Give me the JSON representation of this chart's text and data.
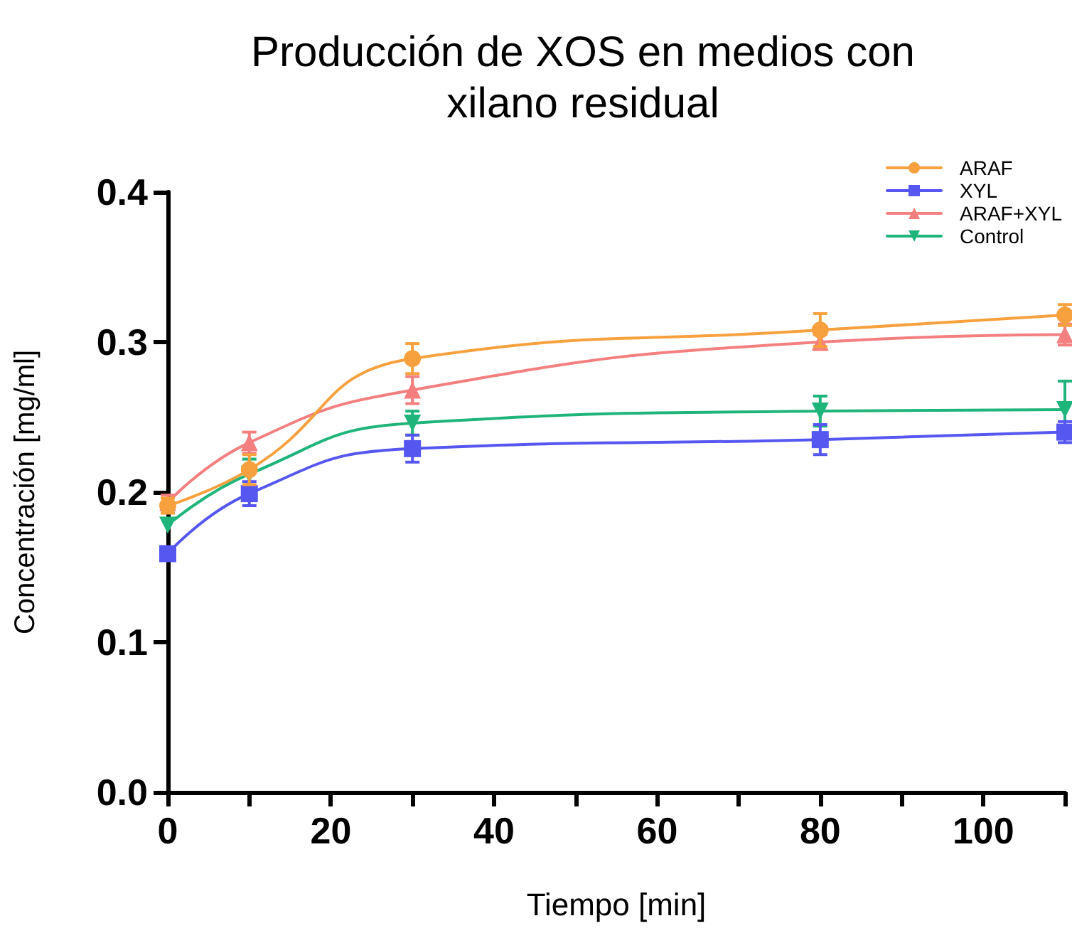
{
  "chart_data": {
    "type": "line",
    "title": "Producción de XOS en medios con\nxilano residual",
    "xlabel": "Tiempo [min]",
    "ylabel": "Concentración [mg/ml]",
    "x": [
      0,
      10,
      30,
      80,
      110
    ],
    "series": [
      {
        "name": "ARAF",
        "color": "#f7a13e",
        "marker": "circle",
        "values": [
          0.191,
          0.215,
          0.289,
          0.308,
          0.318
        ],
        "errors": [
          0.005,
          0.01,
          0.01,
          0.011,
          0.007
        ]
      },
      {
        "name": "XYL",
        "color": "#5656f0",
        "marker": "square",
        "values": [
          0.159,
          0.199,
          0.229,
          0.235,
          0.24
        ],
        "errors": [
          0.004,
          0.008,
          0.009,
          0.01,
          0.007
        ]
      },
      {
        "name": "ARAF+XYL",
        "color": "#f47f7f",
        "marker": "triangle",
        "values": [
          0.193,
          0.233,
          0.268,
          0.3,
          0.305
        ],
        "errors": [
          0.005,
          0.007,
          0.009,
          0.005,
          0.007
        ]
      },
      {
        "name": "Control",
        "color": "#1fb57a",
        "marker": "triangle-down",
        "values": [
          0.178,
          0.212,
          0.246,
          0.254,
          0.255
        ],
        "errors": [
          null,
          0.01,
          0.008,
          0.01,
          0.019
        ]
      }
    ],
    "xlim": [
      0,
      110
    ],
    "xticks": [
      0,
      {
        "value": 10,
        "label": null
      },
      20,
      {
        "value": 30,
        "label": null
      },
      40,
      {
        "value": 50,
        "label": null
      },
      60,
      {
        "value": 70,
        "label": null
      },
      80,
      {
        "value": 90,
        "label": null
      },
      100,
      {
        "value": 110,
        "label": null
      }
    ],
    "ylim": [
      0,
      0.4
    ],
    "yticks": [
      {
        "value": 0,
        "label": "0.0"
      },
      0.1,
      0.2,
      0.3,
      0.4
    ],
    "grid": false,
    "legend": "top right",
    "line_style": "solid"
  }
}
